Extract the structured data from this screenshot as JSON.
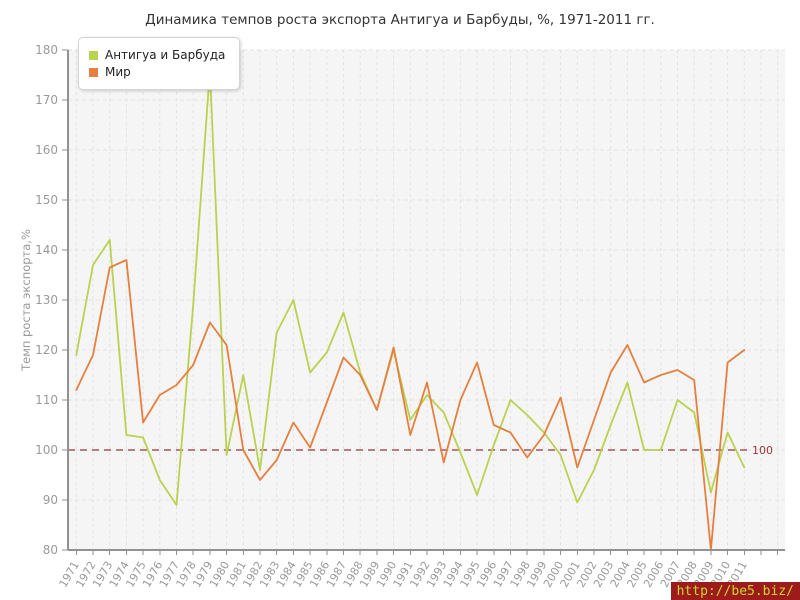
{
  "watermark": "http://be5.biz/",
  "chart_data": {
    "type": "line",
    "title": "Динамика темпов роста экспорта Антигуа и Барбуды, %, 1971-2011 гг.",
    "ylabel": "Темп роста экспорта,%",
    "xlabel": "",
    "ylim": [
      80,
      180
    ],
    "yticks": [
      80,
      90,
      100,
      110,
      120,
      130,
      140,
      150,
      160,
      170,
      180
    ],
    "grid": true,
    "legend_position": "top-left",
    "years": [
      1971,
      1972,
      1973,
      1974,
      1975,
      1976,
      1977,
      1978,
      1979,
      1980,
      1981,
      1982,
      1983,
      1984,
      1985,
      1986,
      1987,
      1988,
      1989,
      1990,
      1991,
      1992,
      1993,
      1994,
      1995,
      1996,
      1997,
      1998,
      1999,
      2000,
      2001,
      2002,
      2003,
      2004,
      2005,
      2006,
      2007,
      2008,
      2009,
      2010,
      2011
    ],
    "series": [
      {
        "name": "Антигуа и Барбуда",
        "color": "#b9d24f",
        "values": [
          119,
          137,
          142,
          103,
          102.5,
          94,
          89,
          129,
          176,
          99,
          115,
          96,
          123.5,
          130,
          115.5,
          119.5,
          127.5,
          115.5,
          108,
          120,
          106,
          111,
          107.5,
          99.5,
          91,
          101,
          110,
          107,
          103.5,
          99,
          89.5,
          96,
          105,
          113.5,
          100,
          100,
          110,
          107.5,
          91.5,
          103.5,
          96.5
        ]
      },
      {
        "name": "Мир",
        "color": "#e6803f",
        "values": [
          112,
          119,
          136.5,
          138,
          105.5,
          111,
          113,
          117,
          125.5,
          121,
          100,
          94,
          98,
          105.5,
          100.5,
          109.5,
          118.5,
          115,
          108,
          120.5,
          103,
          113.5,
          97.5,
          110,
          117.5,
          105,
          103.5,
          98.5,
          103,
          110.5,
          96.5,
          106,
          115.5,
          121,
          113.5,
          115,
          116,
          114,
          80,
          117.5,
          120
        ]
      }
    ],
    "reference_line": {
      "value": 100,
      "label": "100",
      "color": "#9c3535"
    }
  },
  "colors": {
    "plot_bg": "#f5f5f5",
    "grid": "#e2e2e2",
    "axis": "#919191",
    "tick_label": "#9a9a9a"
  }
}
